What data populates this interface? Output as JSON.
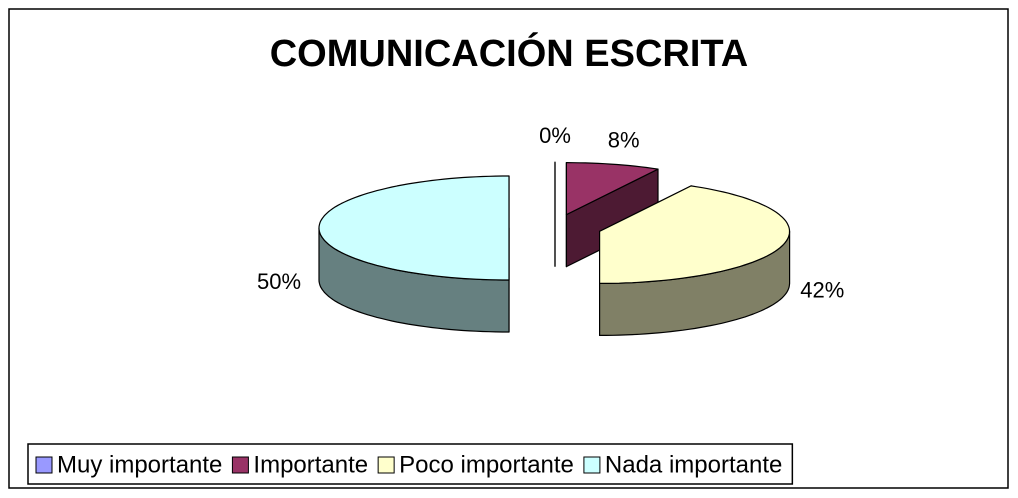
{
  "chart_data": {
    "type": "pie",
    "title": "COMUNICACIÓN ESCRITA",
    "categories": [
      "Muy importante",
      "Importante",
      "Poco importante",
      "Nada importante"
    ],
    "values": [
      0,
      8,
      42,
      50
    ],
    "value_labels": [
      "0%",
      "8%",
      "42%",
      "50%"
    ],
    "colors": [
      "#9999ff",
      "#993366",
      "#ffffcc",
      "#ccffff"
    ],
    "legend": "bottom"
  }
}
